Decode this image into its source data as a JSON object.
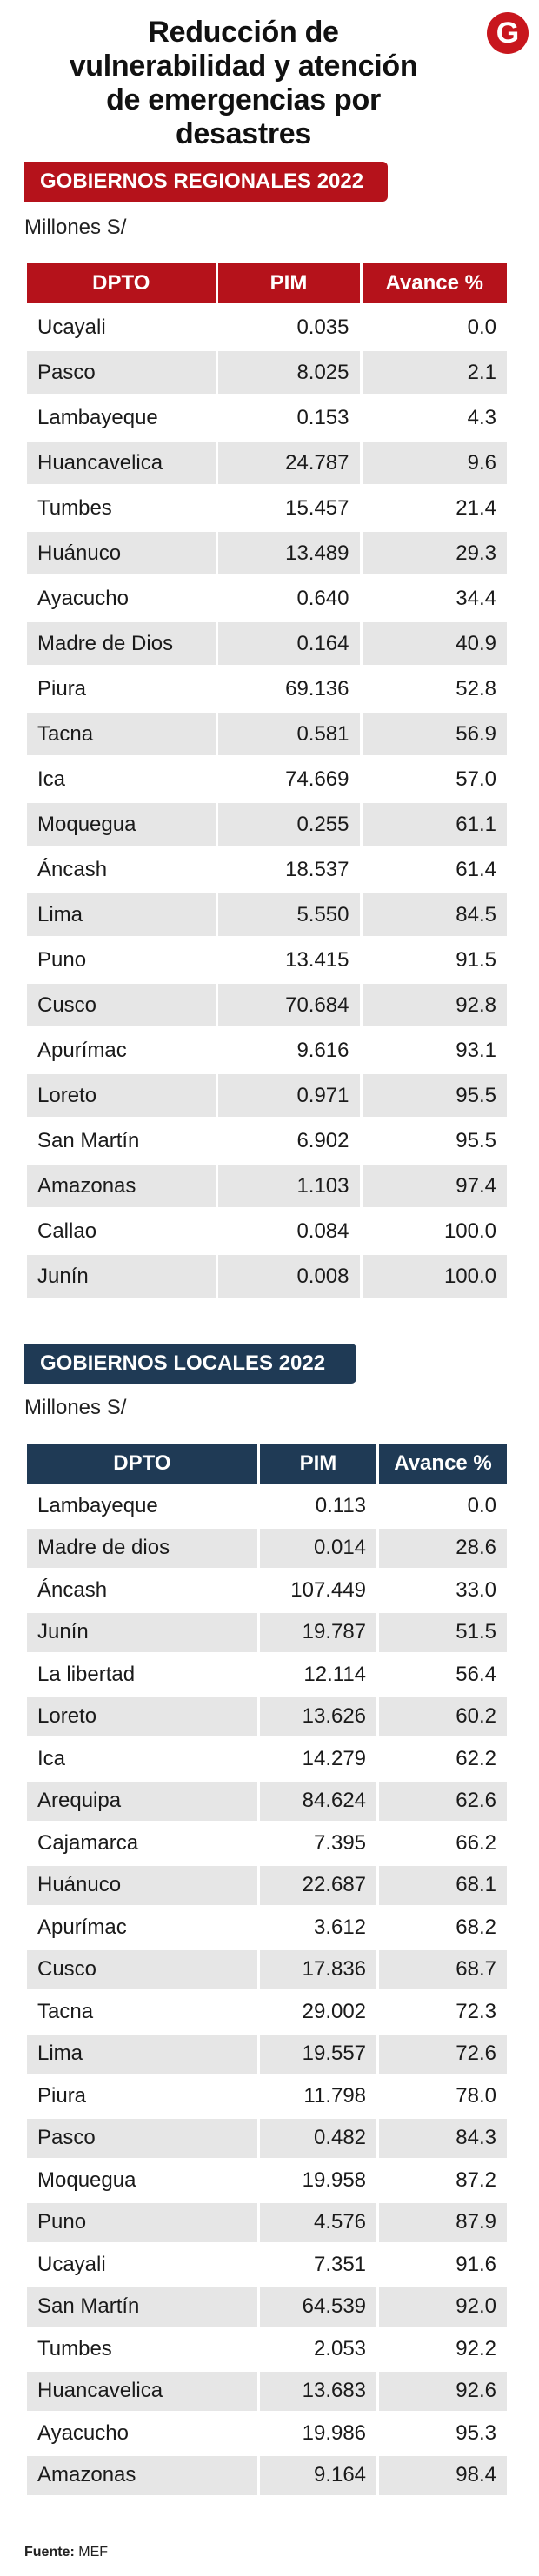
{
  "title": "Reducción de vulnerabilidad y atención de emergencias por desastres",
  "logo_letter": "G",
  "colors": {
    "regional": "#b5121b",
    "local": "#1f3a55",
    "stripe": "#e6e6e6",
    "logo": "#c8161d"
  },
  "source": {
    "label": "Fuente:",
    "value": "MEF"
  },
  "chart_data": [
    {
      "type": "table",
      "title": "GOBIERNOS REGIONALES 2022",
      "units": "Millones S/",
      "columns": [
        "DPTO",
        "PIM",
        "Avance %"
      ],
      "rows": [
        [
          "Ucayali",
          "0.035",
          "0.0"
        ],
        [
          "Pasco",
          "8.025",
          "2.1"
        ],
        [
          "Lambayeque",
          "0.153",
          "4.3"
        ],
        [
          "Huancavelica",
          "24.787",
          "9.6"
        ],
        [
          "Tumbes",
          "15.457",
          "21.4"
        ],
        [
          "Huánuco",
          "13.489",
          "29.3"
        ],
        [
          "Ayacucho",
          "0.640",
          "34.4"
        ],
        [
          "Madre de Dios",
          "0.164",
          "40.9"
        ],
        [
          "Piura",
          "69.136",
          "52.8"
        ],
        [
          "Tacna",
          "0.581",
          "56.9"
        ],
        [
          "Ica",
          "74.669",
          "57.0"
        ],
        [
          "Moquegua",
          "0.255",
          "61.1"
        ],
        [
          "Áncash",
          "18.537",
          "61.4"
        ],
        [
          "Lima",
          "5.550",
          "84.5"
        ],
        [
          "Puno",
          "13.415",
          "91.5"
        ],
        [
          "Cusco",
          "70.684",
          "92.8"
        ],
        [
          "Apurímac",
          "9.616",
          "93.1"
        ],
        [
          "Loreto",
          "0.971",
          "95.5"
        ],
        [
          "San Martín",
          "6.902",
          "95.5"
        ],
        [
          "Amazonas",
          "1.103",
          "97.4"
        ],
        [
          "Callao",
          "0.084",
          "100.0"
        ],
        [
          "Junín",
          "0.008",
          "100.0"
        ]
      ]
    },
    {
      "type": "table",
      "title": "GOBIERNOS LOCALES 2022",
      "units": "Millones S/",
      "columns": [
        "DPTO",
        "PIM",
        "Avance %"
      ],
      "rows": [
        [
          "Lambayeque",
          "0.113",
          "0.0"
        ],
        [
          "Madre de dios",
          "0.014",
          "28.6"
        ],
        [
          "Áncash",
          "107.449",
          "33.0"
        ],
        [
          "Junín",
          "19.787",
          "51.5"
        ],
        [
          "La libertad",
          "12.114",
          "56.4"
        ],
        [
          "Loreto",
          "13.626",
          "60.2"
        ],
        [
          "Ica",
          "14.279",
          "62.2"
        ],
        [
          "Arequipa",
          "84.624",
          "62.6"
        ],
        [
          "Cajamarca",
          "7.395",
          "66.2"
        ],
        [
          "Huánuco",
          "22.687",
          "68.1"
        ],
        [
          "Apurímac",
          "3.612",
          "68.2"
        ],
        [
          "Cusco",
          "17.836",
          "68.7"
        ],
        [
          "Tacna",
          "29.002",
          "72.3"
        ],
        [
          "Lima",
          "19.557",
          "72.6"
        ],
        [
          "Piura",
          "11.798",
          "78.0"
        ],
        [
          "Pasco",
          "0.482",
          "84.3"
        ],
        [
          "Moquegua",
          "19.958",
          "87.2"
        ],
        [
          "Puno",
          "4.576",
          "87.9"
        ],
        [
          "Ucayali",
          "7.351",
          "91.6"
        ],
        [
          "San Martín",
          "64.539",
          "92.0"
        ],
        [
          "Tumbes",
          "2.053",
          "92.2"
        ],
        [
          "Huancavelica",
          "13.683",
          "92.6"
        ],
        [
          "Ayacucho",
          "19.986",
          "95.3"
        ],
        [
          "Amazonas",
          "9.164",
          "98.4"
        ]
      ]
    }
  ]
}
